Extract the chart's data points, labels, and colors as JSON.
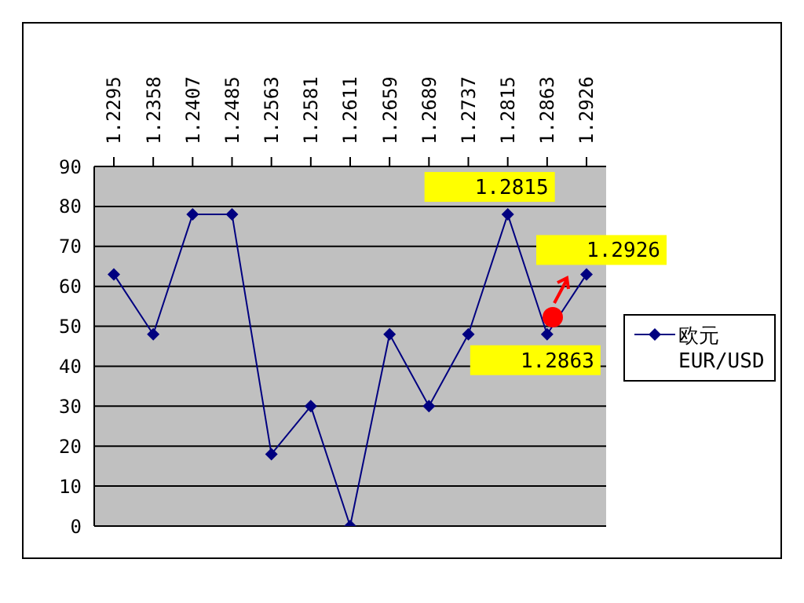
{
  "chart_data": {
    "type": "line",
    "categories": [
      "1.2295",
      "1.2358",
      "1.2407",
      "1.2485",
      "1.2563",
      "1.2581",
      "1.2611",
      "1.2659",
      "1.2689",
      "1.2737",
      "1.2815",
      "1.2863",
      "1.2926"
    ],
    "series": [
      {
        "name": "欧元 EUR/USD",
        "color": "#000080",
        "values": [
          63,
          48,
          78,
          78,
          18,
          30,
          0,
          48,
          30,
          48,
          78,
          48,
          63
        ]
      }
    ],
    "ylim": [
      0,
      90
    ],
    "yticks": [
      0,
      10,
      20,
      30,
      40,
      50,
      60,
      70,
      80,
      90
    ],
    "grid": "y",
    "legend": "right",
    "marker": "diamond",
    "line_style": "solid",
    "annotations": [
      {
        "text": "1.2815",
        "x": "1.2815",
        "y": 78
      },
      {
        "text": "1.2926",
        "x": "1.2926",
        "y": 63
      },
      {
        "text": "1.2863",
        "x": "1.2863",
        "y": 48
      }
    ]
  }
}
